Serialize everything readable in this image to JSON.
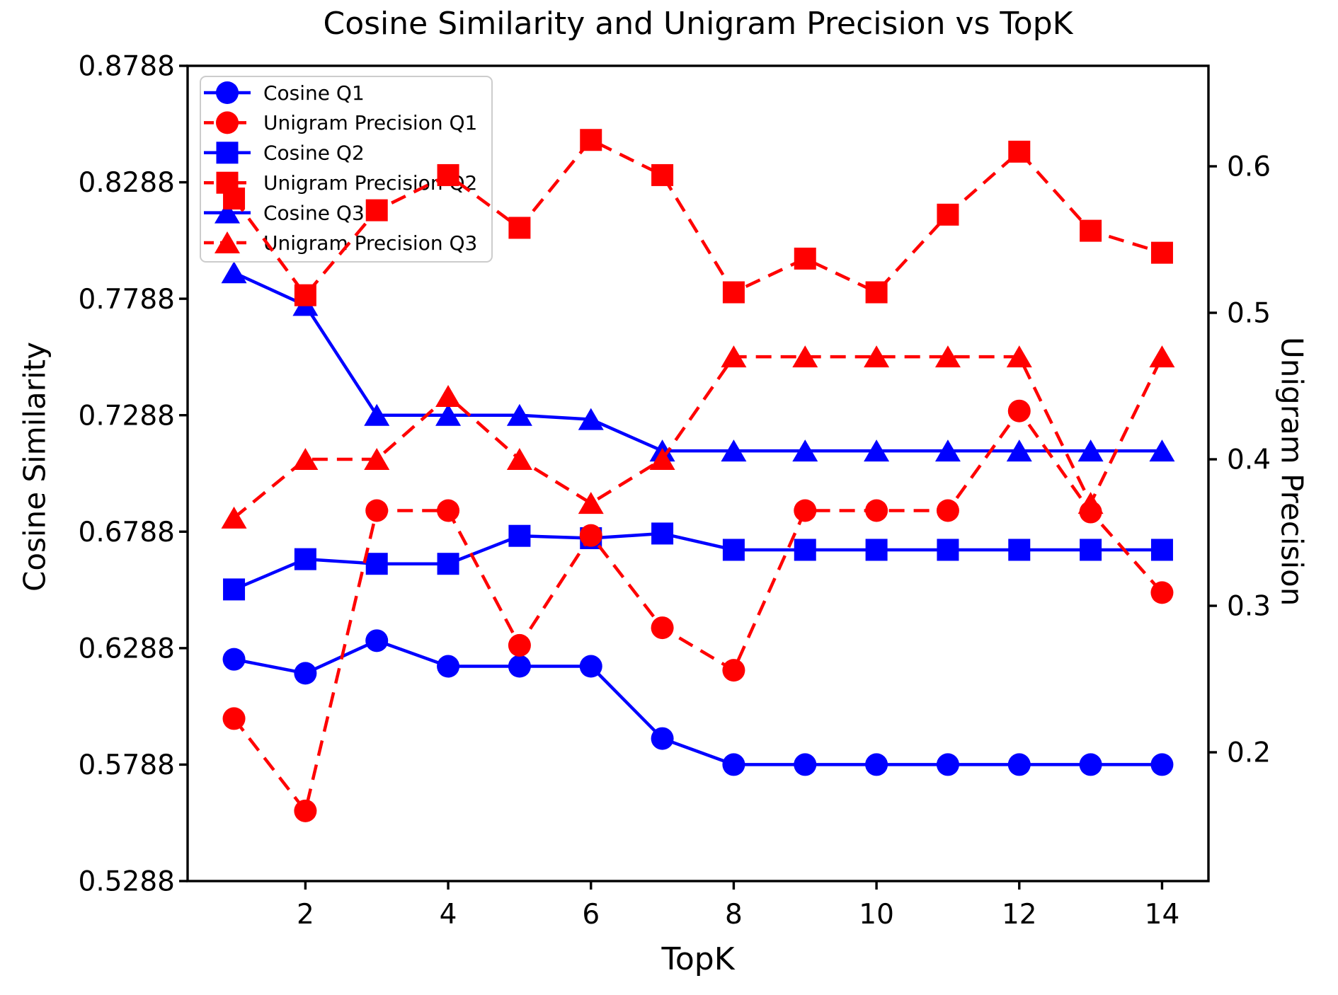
{
  "title": "Cosine Similarity and Unigram Precision vs TopK",
  "colors": {
    "cosine_series": "#0000ff",
    "precision_series": "#ff0000",
    "text": "#000000",
    "legend_border": "#cccccc",
    "background": "#ffffff"
  },
  "axes": {
    "x": {
      "label": "TopK",
      "min": 0.35,
      "max": 14.65,
      "ticks": [
        "2",
        "4",
        "6",
        "8",
        "10",
        "12",
        "14"
      ]
    },
    "y_left": {
      "label": "Cosine Similarity",
      "min": 0.5288,
      "max": 0.8788,
      "ticks": [
        "0.5288",
        "0.5788",
        "0.6288",
        "0.6788",
        "0.7288",
        "0.7788",
        "0.8288",
        "0.8788"
      ]
    },
    "y_right": {
      "label": "Unigram Precision",
      "min": 0.1121,
      "max": 0.6686,
      "ticks": [
        "0.2",
        "0.3",
        "0.4",
        "0.5",
        "0.6"
      ]
    }
  },
  "chart_data": {
    "type": "line",
    "title": "Cosine Similarity and Unigram Precision vs TopK",
    "xlabel": "TopK",
    "ylabel_left": "Cosine Similarity",
    "ylabel_right": "Unigram Precision",
    "grid": false,
    "legend_position": "upper left",
    "x": [
      1,
      2,
      3,
      4,
      5,
      6,
      7,
      8,
      9,
      10,
      11,
      12,
      13,
      14
    ],
    "series": [
      {
        "name": "Cosine Q1",
        "axis": "left",
        "color": "#0000ff",
        "linestyle": "solid",
        "marker": "circle",
        "values": [
          0.624,
          0.618,
          0.632,
          0.621,
          0.621,
          0.621,
          0.59,
          0.5788,
          0.5788,
          0.5788,
          0.5788,
          0.5788,
          0.5788,
          0.5788
        ]
      },
      {
        "name": "Unigram Precision Q1",
        "axis": "right",
        "color": "#ff0000",
        "linestyle": "dashed",
        "marker": "circle",
        "values": [
          0.223,
          0.16,
          0.365,
          0.365,
          0.273,
          0.348,
          0.285,
          0.256,
          0.365,
          0.365,
          0.365,
          0.433,
          0.364,
          0.309
        ]
      },
      {
        "name": "Cosine Q2",
        "axis": "left",
        "color": "#0000ff",
        "linestyle": "solid",
        "marker": "square",
        "values": [
          0.654,
          0.667,
          0.665,
          0.665,
          0.677,
          0.676,
          0.678,
          0.671,
          0.671,
          0.671,
          0.671,
          0.671,
          0.671,
          0.671
        ]
      },
      {
        "name": "Unigram Precision Q2",
        "axis": "right",
        "color": "#ff0000",
        "linestyle": "dashed",
        "marker": "square",
        "values": [
          0.578,
          0.512,
          0.57,
          0.594,
          0.558,
          0.618,
          0.594,
          0.514,
          0.537,
          0.514,
          0.567,
          0.61,
          0.556,
          0.541
        ]
      },
      {
        "name": "Cosine Q3",
        "axis": "left",
        "color": "#0000ff",
        "linestyle": "solid",
        "marker": "triangle",
        "values": [
          0.79,
          0.776,
          0.7288,
          0.7288,
          0.7288,
          0.727,
          0.7135,
          0.7135,
          0.7135,
          0.7135,
          0.7135,
          0.7135,
          0.7135,
          0.7135
        ]
      },
      {
        "name": "Unigram Precision Q3",
        "axis": "right",
        "color": "#ff0000",
        "linestyle": "dashed",
        "marker": "triangle",
        "values": [
          0.36,
          0.4,
          0.4,
          0.443,
          0.4,
          0.37,
          0.4,
          0.47,
          0.47,
          0.47,
          0.47,
          0.47,
          0.37,
          0.47
        ]
      }
    ]
  }
}
